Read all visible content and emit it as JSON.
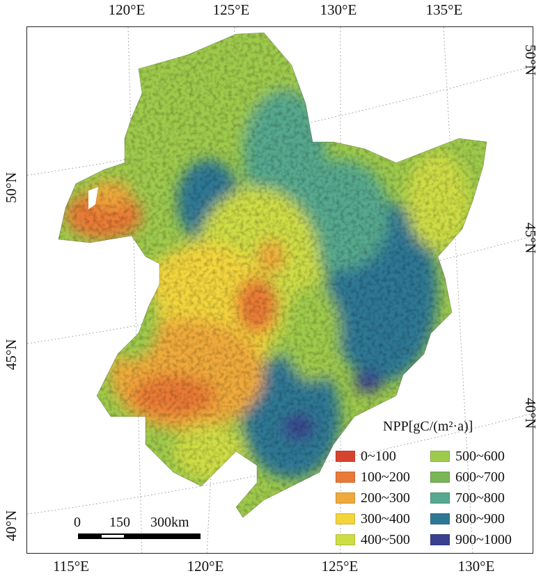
{
  "top_ticks": [
    "120°E",
    "125°E",
    "130°E",
    "135°E"
  ],
  "bottom_ticks": [
    "115°E",
    "120°E",
    "125°E",
    "130°E"
  ],
  "left_ticks": [
    "50°N",
    "45°N",
    "40°N"
  ],
  "right_ticks": [
    "50°N",
    "45°N",
    "40°N"
  ],
  "legend": {
    "title": "NPP[gC/(m²·a)]",
    "items": [
      {
        "label": "0~100",
        "color": "#d7442e"
      },
      {
        "label": "100~200",
        "color": "#e97a36"
      },
      {
        "label": "200~300",
        "color": "#f0aa3a"
      },
      {
        "label": "300~400",
        "color": "#f3d53c"
      },
      {
        "label": "400~500",
        "color": "#cfdd45"
      },
      {
        "label": "500~600",
        "color": "#9fcb4c"
      },
      {
        "label": "600~700",
        "color": "#79b655"
      },
      {
        "label": "700~800",
        "color": "#56a98e"
      },
      {
        "label": "800~900",
        "color": "#2e7895"
      },
      {
        "label": "900~1000",
        "color": "#3a3f8f"
      }
    ]
  },
  "scale_bar": {
    "labels": [
      "0",
      "150",
      "300km"
    ]
  },
  "colors": {
    "frame": "#222222",
    "graticule": "#9a9a9a",
    "background": "#ffffff"
  }
}
